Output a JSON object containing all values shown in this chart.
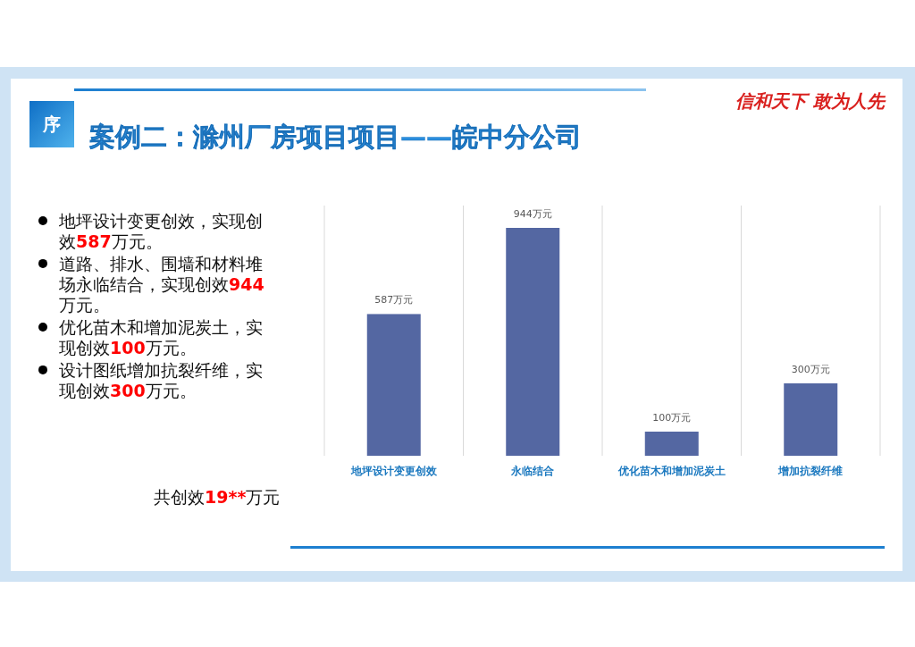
{
  "chart_data": {
    "type": "bar",
    "title": "案例二：滁州厂房项目项目——皖中分公司",
    "categories": [
      "地坪设计变更创效",
      "永临结合",
      "优化苗木和增加泥炭土",
      "增加抗裂纤维"
    ],
    "values": [
      587,
      944,
      100,
      300
    ],
    "value_labels": [
      "587万元",
      "944万元",
      "100万元",
      "300万元"
    ],
    "color": "#5467a2",
    "grid": "x",
    "tick_labels": "x",
    "annotations": [
      "序",
      "信和天下 敢为人先",
      "地坪设计变更创效，实现创效587万元。",
      "道路、排水、围墙和材料堆场永临结合，实现创效944万元。",
      "优化苗木和增加泥炭土，实现创效100万元。",
      "设计图纸增加抗裂纤维，实现创效300万元。",
      "共创效19**万元"
    ]
  }
}
